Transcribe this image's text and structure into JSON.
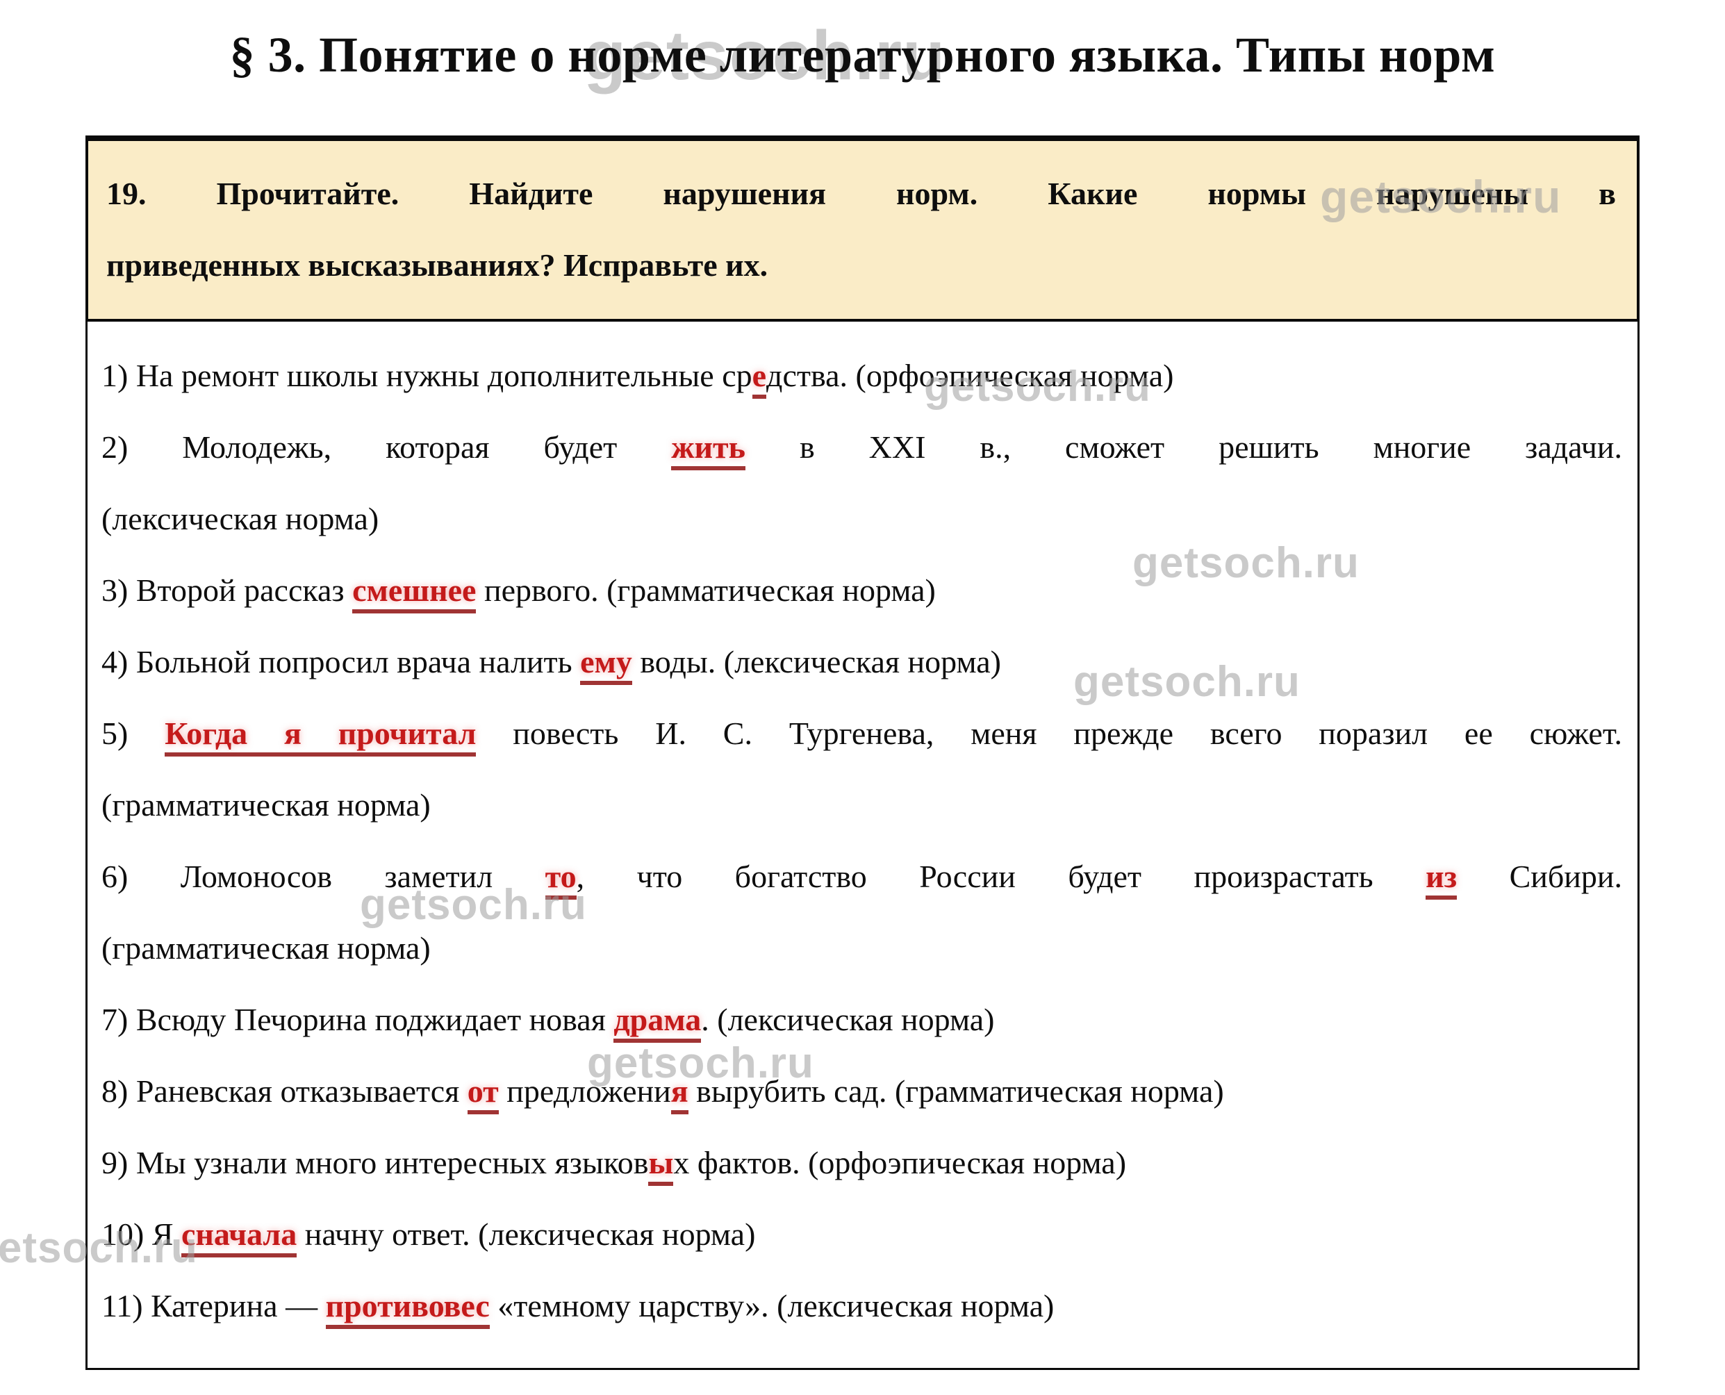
{
  "watermark": {
    "text": "getsoch.ru"
  },
  "title": "§ 3. Понятие о норме литературного языка. Типы норм",
  "task": {
    "line1": "19. Прочитайте. Найдите нарушения норм. Какие нормы нарушены в",
    "line2": "приведенных высказываниях? Исправьте их."
  },
  "colors": {
    "highlight_red": "#c41a1a",
    "underline_red": "#a03434",
    "task_box_bg": "#faecc7",
    "border_black": "#0b0b0b",
    "watermark_gray": "#9e9e9e"
  },
  "items": [
    {
      "lines": [
        {
          "stretch": false,
          "segments": [
            {
              "t": "1) На ремонт школы нужны дополнительные ср"
            },
            {
              "t": "е",
              "red": true
            },
            {
              "t": "дства. (орфоэпическая норма)"
            }
          ]
        }
      ]
    },
    {
      "lines": [
        {
          "stretch": true,
          "segments": [
            {
              "t": "2) Молодежь, которая будет "
            },
            {
              "t": "жить",
              "red": true
            },
            {
              "t": " в XXI в., сможет решить многие задачи."
            }
          ]
        },
        {
          "stretch": false,
          "segments": [
            {
              "t": "(лексическая норма)"
            }
          ]
        }
      ]
    },
    {
      "lines": [
        {
          "stretch": false,
          "segments": [
            {
              "t": "3) Второй рассказ "
            },
            {
              "t": "смешнее",
              "red": true
            },
            {
              "t": " первого. (грамматическая норма)"
            }
          ]
        }
      ]
    },
    {
      "lines": [
        {
          "stretch": false,
          "segments": [
            {
              "t": "4) Больной попросил врача налить "
            },
            {
              "t": "ему",
              "red": true
            },
            {
              "t": " воды. (лексическая норма)"
            }
          ]
        }
      ]
    },
    {
      "lines": [
        {
          "stretch": true,
          "segments": [
            {
              "t": "5) "
            },
            {
              "t": "Когда я прочитал",
              "red": true
            },
            {
              "t": " повесть И. С. Тургенева, меня прежде всего поразил ее сюжет."
            }
          ]
        },
        {
          "stretch": false,
          "segments": [
            {
              "t": "(грамматическая норма)"
            }
          ]
        }
      ]
    },
    {
      "lines": [
        {
          "stretch": true,
          "segments": [
            {
              "t": "6) Ломоносов заметил "
            },
            {
              "t": "то",
              "red": true
            },
            {
              "t": ", что богатство России будет произрастать "
            },
            {
              "t": "из",
              "red": true
            },
            {
              "t": " Сибири."
            }
          ]
        },
        {
          "stretch": false,
          "segments": [
            {
              "t": "(грамматическая норма)"
            }
          ]
        }
      ]
    },
    {
      "lines": [
        {
          "stretch": false,
          "segments": [
            {
              "t": "7) Всюду Печорина поджидает новая "
            },
            {
              "t": "драма",
              "red": true
            },
            {
              "t": ". (лексическая норма)"
            }
          ]
        }
      ]
    },
    {
      "lines": [
        {
          "stretch": false,
          "segments": [
            {
              "t": "8) Раневская отказывается "
            },
            {
              "t": "от",
              "red": true
            },
            {
              "t": " предложени"
            },
            {
              "t": "я",
              "red": true
            },
            {
              "t": " вырубить сад. (грамматическая норма)"
            }
          ]
        }
      ]
    },
    {
      "lines": [
        {
          "stretch": false,
          "segments": [
            {
              "t": "9) Мы узнали много интересных языков"
            },
            {
              "t": "ы",
              "red": true
            },
            {
              "t": "х фактов. (орфоэпическая норма)"
            }
          ]
        }
      ]
    },
    {
      "lines": [
        {
          "stretch": false,
          "segments": [
            {
              "t": "10) Я "
            },
            {
              "t": "сначала",
              "red": true
            },
            {
              "t": " начну ответ. (лексическая норма)"
            }
          ]
        }
      ]
    },
    {
      "lines": [
        {
          "stretch": false,
          "segments": [
            {
              "t": "11) Катерина — "
            },
            {
              "t": "противовес",
              "red": true
            },
            {
              "t": " «темному царству». (лексическая норма)"
            }
          ]
        }
      ]
    }
  ]
}
